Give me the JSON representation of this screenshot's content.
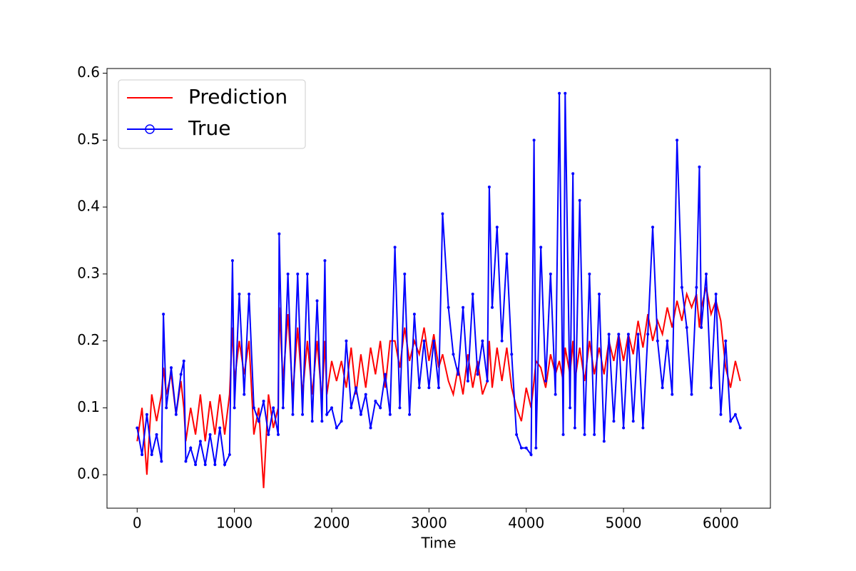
{
  "chart_data": {
    "type": "line",
    "xlabel": "Time",
    "legend": "upper left",
    "x": [
      0,
      50,
      100,
      150,
      200,
      250,
      270,
      300,
      350,
      400,
      450,
      480,
      500,
      550,
      600,
      650,
      700,
      750,
      800,
      850,
      900,
      950,
      980,
      1000,
      1050,
      1100,
      1150,
      1200,
      1250,
      1300,
      1350,
      1400,
      1450,
      1460,
      1500,
      1550,
      1600,
      1650,
      1700,
      1750,
      1800,
      1850,
      1900,
      1930,
      1950,
      2000,
      2050,
      2100,
      2150,
      2200,
      2250,
      2300,
      2350,
      2400,
      2450,
      2500,
      2550,
      2600,
      2650,
      2700,
      2750,
      2800,
      2850,
      2900,
      2950,
      3000,
      3050,
      3100,
      3140,
      3200,
      3250,
      3300,
      3350,
      3400,
      3450,
      3500,
      3550,
      3600,
      3620,
      3650,
      3700,
      3750,
      3800,
      3850,
      3900,
      3950,
      4000,
      4050,
      4080,
      4100,
      4150,
      4200,
      4250,
      4300,
      4340,
      4380,
      4400,
      4450,
      4480,
      4500,
      4550,
      4600,
      4650,
      4700,
      4750,
      4800,
      4850,
      4900,
      4950,
      5000,
      5050,
      5100,
      5150,
      5200,
      5250,
      5300,
      5350,
      5400,
      5450,
      5500,
      5550,
      5600,
      5650,
      5700,
      5750,
      5780,
      5800,
      5850,
      5900,
      5950,
      6000,
      6050,
      6100,
      6150,
      6200
    ],
    "series": [
      {
        "name": "Prediction",
        "color": "#ff0000",
        "marker": false,
        "values": [
          0.05,
          0.1,
          0.0,
          0.12,
          0.08,
          0.12,
          0.16,
          0.12,
          0.15,
          0.09,
          0.14,
          0.1,
          0.05,
          0.1,
          0.06,
          0.12,
          0.05,
          0.11,
          0.06,
          0.12,
          0.06,
          0.12,
          0.22,
          0.14,
          0.2,
          0.15,
          0.2,
          0.06,
          0.1,
          -0.02,
          0.12,
          0.07,
          0.1,
          0.25,
          0.14,
          0.24,
          0.12,
          0.22,
          0.12,
          0.2,
          0.12,
          0.2,
          0.11,
          0.2,
          0.12,
          0.17,
          0.14,
          0.17,
          0.13,
          0.19,
          0.12,
          0.18,
          0.13,
          0.19,
          0.15,
          0.2,
          0.13,
          0.2,
          0.2,
          0.16,
          0.22,
          0.17,
          0.2,
          0.18,
          0.22,
          0.17,
          0.21,
          0.16,
          0.18,
          0.14,
          0.12,
          0.16,
          0.12,
          0.18,
          0.13,
          0.17,
          0.12,
          0.14,
          0.2,
          0.13,
          0.19,
          0.14,
          0.19,
          0.13,
          0.1,
          0.08,
          0.13,
          0.1,
          0.14,
          0.17,
          0.16,
          0.13,
          0.18,
          0.15,
          0.17,
          0.14,
          0.19,
          0.15,
          0.2,
          0.14,
          0.19,
          0.14,
          0.2,
          0.15,
          0.19,
          0.15,
          0.2,
          0.17,
          0.21,
          0.17,
          0.21,
          0.18,
          0.23,
          0.19,
          0.24,
          0.2,
          0.23,
          0.21,
          0.25,
          0.22,
          0.26,
          0.23,
          0.27,
          0.25,
          0.27,
          0.22,
          0.25,
          0.28,
          0.24,
          0.26,
          0.23,
          0.16,
          0.13,
          0.17,
          0.14
        ]
      },
      {
        "name": "True",
        "color": "#0000ff",
        "marker": true,
        "values": [
          0.07,
          0.03,
          0.09,
          0.03,
          0.06,
          0.02,
          0.24,
          0.1,
          0.16,
          0.09,
          0.15,
          0.17,
          0.02,
          0.04,
          0.015,
          0.05,
          0.015,
          0.06,
          0.015,
          0.07,
          0.015,
          0.03,
          0.32,
          0.1,
          0.27,
          0.12,
          0.27,
          0.1,
          0.08,
          0.11,
          0.06,
          0.1,
          0.06,
          0.36,
          0.1,
          0.3,
          0.09,
          0.3,
          0.09,
          0.3,
          0.08,
          0.26,
          0.08,
          0.32,
          0.09,
          0.1,
          0.07,
          0.08,
          0.2,
          0.1,
          0.13,
          0.09,
          0.12,
          0.07,
          0.11,
          0.1,
          0.15,
          0.09,
          0.34,
          0.1,
          0.3,
          0.09,
          0.24,
          0.13,
          0.2,
          0.13,
          0.2,
          0.13,
          0.39,
          0.25,
          0.18,
          0.15,
          0.25,
          0.14,
          0.27,
          0.15,
          0.2,
          0.14,
          0.43,
          0.25,
          0.37,
          0.2,
          0.33,
          0.18,
          0.06,
          0.04,
          0.04,
          0.03,
          0.5,
          0.04,
          0.34,
          0.14,
          0.3,
          0.12,
          0.57,
          0.06,
          0.57,
          0.1,
          0.45,
          0.07,
          0.41,
          0.06,
          0.3,
          0.06,
          0.27,
          0.05,
          0.21,
          0.08,
          0.21,
          0.07,
          0.21,
          0.08,
          0.21,
          0.07,
          0.21,
          0.37,
          0.2,
          0.13,
          0.2,
          0.12,
          0.5,
          0.28,
          0.22,
          0.12,
          0.28,
          0.46,
          0.22,
          0.3,
          0.13,
          0.27,
          0.09,
          0.2,
          0.08,
          0.09,
          0.07
        ]
      }
    ],
    "xlim": [
      -310,
      6510
    ],
    "xticks": [
      0,
      1000,
      2000,
      3000,
      4000,
      5000,
      6000
    ],
    "ylim": [
      -0.05,
      0.607
    ],
    "yticks": [
      {
        "value": 0,
        "label": "0.0"
      },
      0.1,
      0.2,
      0.3,
      0.4,
      0.5,
      0.6
    ]
  }
}
